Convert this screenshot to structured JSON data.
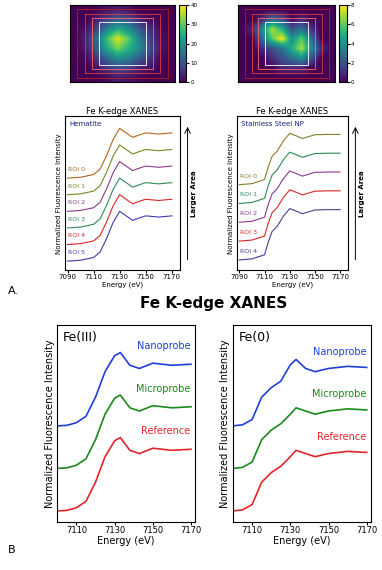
{
  "panel_labels": [
    "A.",
    "B"
  ],
  "panel_title": "Fe K-edge XANES",
  "chart_data": [
    {
      "type": "heatmap",
      "tick_labels": false,
      "cells": [
        [
          0,
          0,
          0,
          2,
          3,
          2,
          0,
          0,
          0,
          0
        ],
        [
          0,
          0,
          3,
          8,
          12,
          10,
          4,
          1,
          0,
          0
        ],
        [
          0,
          2,
          8,
          18,
          25,
          20,
          12,
          5,
          1,
          0
        ],
        [
          0,
          4,
          14,
          28,
          38,
          30,
          18,
          8,
          2,
          0
        ],
        [
          0,
          3,
          12,
          24,
          32,
          26,
          20,
          10,
          3,
          0
        ],
        [
          0,
          1,
          6,
          14,
          20,
          18,
          12,
          6,
          1,
          0
        ],
        [
          0,
          0,
          2,
          6,
          10,
          8,
          4,
          2,
          0,
          0
        ],
        [
          0,
          0,
          0,
          1,
          3,
          2,
          1,
          0,
          0,
          0
        ]
      ],
      "colorbar_range": [
        0,
        40
      ],
      "colorbar_ticks": [
        0,
        10,
        20,
        30,
        40
      ]
    },
    {
      "type": "heatmap",
      "tick_labels": false,
      "cells": [
        [
          0,
          0,
          0,
          0,
          0,
          0,
          0,
          0,
          0,
          0
        ],
        [
          0,
          0,
          1,
          3,
          2,
          0,
          1,
          0,
          0,
          0
        ],
        [
          0,
          1,
          4,
          7,
          5,
          2,
          3,
          1,
          0,
          0
        ],
        [
          0,
          0,
          3,
          6,
          8,
          4,
          6,
          3,
          0,
          0
        ],
        [
          0,
          0,
          1,
          2,
          3,
          5,
          7,
          4,
          1,
          0
        ],
        [
          0,
          0,
          0,
          1,
          2,
          3,
          4,
          2,
          0,
          0
        ],
        [
          0,
          0,
          0,
          0,
          1,
          1,
          1,
          0,
          0,
          0
        ],
        [
          0,
          0,
          0,
          0,
          0,
          0,
          0,
          0,
          0,
          0
        ]
      ],
      "colorbar_range": [
        0,
        8
      ],
      "colorbar_ticks": [
        0,
        2,
        4,
        6,
        8
      ]
    },
    {
      "type": "line",
      "title": "Fe K-edge XANES",
      "annotations": [
        "Hematite",
        "Larger Area"
      ],
      "xlabel": "Energy (eV)",
      "ylabel": "Normalized Fluorescence Intensity",
      "xlim": [
        7088,
        7176
      ],
      "xticks": [
        7090,
        7110,
        7130,
        7150,
        7170
      ],
      "ylim": [
        -0.3,
        4.8
      ],
      "tick_labels": "x",
      "x": [
        7090,
        7100,
        7110,
        7115,
        7120,
        7125,
        7130,
        7135,
        7140,
        7145,
        7150,
        7160,
        7170
      ],
      "series": [
        {
          "name": "ROI 0",
          "color": "#b5651d",
          "values": [
            2.75,
            2.78,
            2.87,
            3.05,
            3.5,
            4.03,
            4.4,
            4.25,
            4.1,
            4.18,
            4.25,
            4.21,
            4.25
          ]
        },
        {
          "name": "ROI 1",
          "color": "#6b8e23",
          "values": [
            2.2,
            2.23,
            2.32,
            2.5,
            2.95,
            3.48,
            3.85,
            3.7,
            3.55,
            3.63,
            3.7,
            3.66,
            3.7
          ]
        },
        {
          "name": "ROI 2",
          "color": "#8b3a8b",
          "values": [
            1.65,
            1.68,
            1.77,
            1.95,
            2.4,
            2.93,
            3.3,
            3.15,
            3.0,
            3.08,
            3.15,
            3.11,
            3.15
          ]
        },
        {
          "name": "ROI 3",
          "color": "#2e8b57",
          "values": [
            1.1,
            1.13,
            1.22,
            1.4,
            1.85,
            2.38,
            2.75,
            2.6,
            2.45,
            2.53,
            2.6,
            2.56,
            2.6
          ]
        },
        {
          "name": "ROI 4",
          "color": "#d62728",
          "values": [
            0.55,
            0.58,
            0.67,
            0.85,
            1.3,
            1.83,
            2.2,
            2.05,
            1.9,
            1.98,
            2.05,
            2.01,
            2.05
          ]
        },
        {
          "name": "ROI 5",
          "color": "#3c3caa",
          "values": [
            0,
            0.03,
            0.12,
            0.3,
            0.75,
            1.28,
            1.65,
            1.5,
            1.35,
            1.43,
            1.5,
            1.46,
            1.5
          ]
        }
      ]
    },
    {
      "type": "line",
      "title": "Fe K-edge XANES",
      "annotations": [
        "Stainless Steel NP",
        "Larger Area"
      ],
      "xlabel": "Energy (eV)",
      "ylabel": "Normalized Fluorescence Intensity",
      "xlim": [
        7088,
        7176
      ],
      "xticks": [
        7090,
        7110,
        7130,
        7150,
        7170
      ],
      "ylim": [
        -0.3,
        4.2
      ],
      "tick_labels": "x",
      "x": [
        7090,
        7100,
        7110,
        7113,
        7116,
        7120,
        7125,
        7130,
        7135,
        7140,
        7150,
        7160,
        7170
      ],
      "series": [
        {
          "name": "ROI 0",
          "color": "#8b7d2b",
          "values": [
            2.2,
            2.23,
            2.35,
            2.73,
            3.03,
            3.18,
            3.48,
            3.7,
            3.63,
            3.55,
            3.66,
            3.67,
            3.67
          ]
        },
        {
          "name": "ROI 1",
          "color": "#2e8b57",
          "values": [
            1.65,
            1.68,
            1.8,
            2.18,
            2.48,
            2.63,
            2.93,
            3.15,
            3.08,
            3.0,
            3.11,
            3.12,
            3.12
          ]
        },
        {
          "name": "ROI 2",
          "color": "#8b3a8b",
          "values": [
            1.1,
            1.13,
            1.25,
            1.63,
            1.93,
            2.08,
            2.38,
            2.6,
            2.53,
            2.45,
            2.56,
            2.57,
            2.57
          ]
        },
        {
          "name": "ROI 3",
          "color": "#d62728",
          "values": [
            0.55,
            0.58,
            0.7,
            1.08,
            1.38,
            1.53,
            1.83,
            2.05,
            1.98,
            1.9,
            2.01,
            2.02,
            2.02
          ]
        },
        {
          "name": "ROI 4",
          "color": "#4b3c9a",
          "values": [
            0,
            0.03,
            0.15,
            0.53,
            0.83,
            0.98,
            1.28,
            1.5,
            1.43,
            1.35,
            1.46,
            1.47,
            1.47
          ]
        }
      ]
    },
    {
      "type": "line",
      "annotations": [
        "Fe(III)"
      ],
      "xlabel": "Energy (eV)",
      "ylabel": "Normalized Fluorescence Intensity",
      "xlim": [
        7100,
        7172
      ],
      "xticks": [
        7110,
        7130,
        7150,
        7170
      ],
      "ylim": [
        -0.2,
        3.5
      ],
      "tick_labels": "x",
      "x": [
        7100,
        7105,
        7110,
        7115,
        7120,
        7125,
        7130,
        7133,
        7138,
        7143,
        7150,
        7160,
        7170
      ],
      "series": [
        {
          "name": "Nanoprobe",
          "color": "#1f3fd6",
          "values": [
            1.6,
            1.61,
            1.66,
            1.78,
            2.14,
            2.62,
            2.92,
            2.98,
            2.74,
            2.68,
            2.78,
            2.74,
            2.76
          ]
        },
        {
          "name": "Microprobe",
          "color": "#1a8a1a",
          "values": [
            0.8,
            0.81,
            0.86,
            0.98,
            1.34,
            1.82,
            2.12,
            2.18,
            1.94,
            1.88,
            1.98,
            1.94,
            1.96
          ]
        },
        {
          "name": "Reference",
          "color": "#e0262b",
          "values": [
            0,
            0.01,
            0.06,
            0.18,
            0.54,
            1.02,
            1.32,
            1.38,
            1.14,
            1.08,
            1.18,
            1.14,
            1.16
          ]
        }
      ]
    },
    {
      "type": "line",
      "annotations": [
        "Fe(0)"
      ],
      "xlabel": "Energy (eV)",
      "ylabel": "Normalized Fluorescence Intensity",
      "xlim": [
        7100,
        7172
      ],
      "xticks": [
        7110,
        7130,
        7150,
        7170
      ],
      "ylim": [
        -0.2,
        3.5
      ],
      "tick_labels": "x",
      "x": [
        7100,
        7105,
        7110,
        7115,
        7120,
        7125,
        7130,
        7133,
        7138,
        7143,
        7150,
        7160,
        7170
      ],
      "series": [
        {
          "name": "Nanoprobe",
          "color": "#1f3fd6",
          "values": [
            1.6,
            1.62,
            1.72,
            2.14,
            2.32,
            2.44,
            2.75,
            2.85,
            2.68,
            2.62,
            2.68,
            2.72,
            2.7
          ]
        },
        {
          "name": "Microprobe",
          "color": "#1a8a1a",
          "values": [
            0.8,
            0.82,
            0.92,
            1.34,
            1.52,
            1.64,
            1.82,
            1.94,
            1.88,
            1.82,
            1.88,
            1.92,
            1.9
          ]
        },
        {
          "name": "Reference",
          "color": "#e0262b",
          "values": [
            0,
            0.02,
            0.12,
            0.54,
            0.72,
            0.84,
            1.02,
            1.14,
            1.08,
            1.02,
            1.08,
            1.12,
            1.1
          ]
        }
      ]
    }
  ]
}
